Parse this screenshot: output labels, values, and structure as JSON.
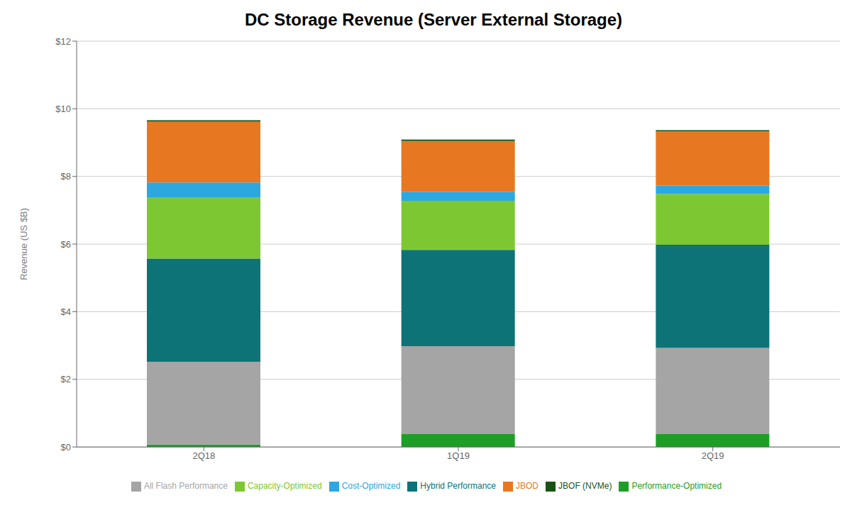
{
  "chart_data": {
    "type": "bar",
    "title": "DC Storage Revenue (Server External Storage)",
    "ylabel": "Revenue  (US $B)",
    "categories": [
      "2Q18",
      "1Q19",
      "2Q19"
    ],
    "series": [
      {
        "name": "Performance-Optimized",
        "color": "#1e9e27",
        "values": [
          0.07,
          0.38,
          0.38
        ]
      },
      {
        "name": "All Flash Performance",
        "color": "#a5a5a5",
        "values": [
          2.45,
          2.6,
          2.55
        ]
      },
      {
        "name": "Hybrid Performance",
        "color": "#0d7377",
        "values": [
          3.05,
          2.85,
          3.05
        ]
      },
      {
        "name": "Capacity-Optimized",
        "color": "#7dc832",
        "values": [
          1.8,
          1.45,
          1.5
        ]
      },
      {
        "name": "Cost-Optimized",
        "color": "#2da7e0",
        "values": [
          0.45,
          0.27,
          0.25
        ]
      },
      {
        "name": "JBOD",
        "color": "#e87722",
        "values": [
          1.8,
          1.5,
          1.6
        ]
      },
      {
        "name": "JBOF (NVMe)",
        "color": "#1a5216",
        "values": [
          0.04,
          0.04,
          0.04
        ]
      }
    ],
    "stacked": true,
    "ylim": [
      0,
      12
    ],
    "yticks": [
      {
        "value": 0,
        "label": "$0"
      },
      {
        "value": 2,
        "label": "$2"
      },
      {
        "value": 4,
        "label": "$4"
      },
      {
        "value": 6,
        "label": "$6"
      },
      {
        "value": 8,
        "label": "$8"
      },
      {
        "value": 10,
        "label": "$10"
      },
      {
        "value": 12,
        "label": "$12"
      }
    ],
    "grid": true,
    "legend": "bottom"
  }
}
